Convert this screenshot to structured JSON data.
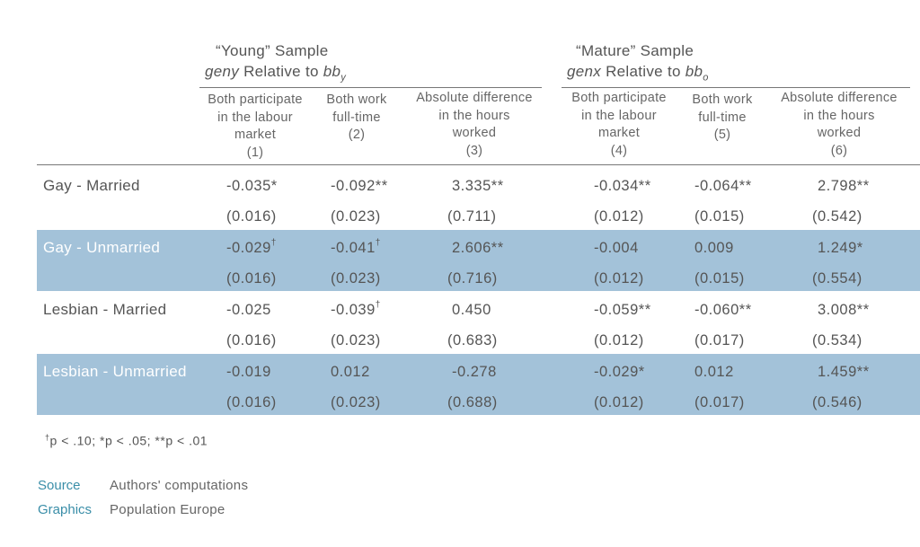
{
  "groups": [
    {
      "title": "“Young” Sample",
      "sub_var": "geny",
      "sub_mid": " Relative to ",
      "sub_base": "bb",
      "sub_index": "y"
    },
    {
      "title": "“Mature” Sample",
      "sub_var": "genx",
      "sub_mid": " Relative to ",
      "sub_base": "bb",
      "sub_index": "o"
    }
  ],
  "columns": [
    {
      "lines": [
        "Both participate",
        "in the labour",
        "market",
        "(1)"
      ]
    },
    {
      "lines": [
        "Both work",
        "full-time",
        "(2)"
      ]
    },
    {
      "lines": [
        "Absolute difference",
        "in the hours",
        "worked",
        "(3)"
      ]
    },
    {
      "lines": [
        "Both participate",
        "in the labour",
        "market",
        "(4)"
      ]
    },
    {
      "lines": [
        "Both work",
        "full-time",
        "(5)"
      ]
    },
    {
      "lines": [
        "Absolute difference",
        "in the hours",
        "worked",
        "(6)"
      ]
    }
  ],
  "rows": [
    {
      "label": "Gay - Married",
      "highlight": false,
      "coef": [
        [
          "-0.035*",
          ""
        ],
        [
          "-0.092**",
          ""
        ],
        [
          "3.335**",
          ""
        ],
        [
          "-0.034**",
          ""
        ],
        [
          "-0.064**",
          ""
        ],
        [
          "2.798**",
          ""
        ]
      ],
      "se": [
        "(0.016)",
        "(0.023)",
        "(0.711)",
        "(0.012)",
        "(0.015)",
        "(0.542)"
      ]
    },
    {
      "label": "Gay - Unmarried",
      "highlight": true,
      "coef": [
        [
          "-0.029",
          "†"
        ],
        [
          "-0.041",
          "†"
        ],
        [
          "2.606**",
          ""
        ],
        [
          "-0.004",
          ""
        ],
        [
          "0.009",
          ""
        ],
        [
          "1.249*",
          ""
        ]
      ],
      "se": [
        "(0.016)",
        "(0.023)",
        "(0.716)",
        "(0.012)",
        "(0.015)",
        "(0.554)"
      ]
    },
    {
      "label": "Lesbian - Married",
      "highlight": false,
      "coef": [
        [
          "-0.025",
          ""
        ],
        [
          "-0.039",
          "†"
        ],
        [
          "0.450",
          ""
        ],
        [
          "-0.059**",
          ""
        ],
        [
          "-0.060**",
          ""
        ],
        [
          "3.008**",
          ""
        ]
      ],
      "se": [
        "(0.016)",
        "(0.023)",
        "(0.683)",
        "(0.012)",
        "(0.017)",
        "(0.534)"
      ]
    },
    {
      "label": "Lesbian - Unmarried",
      "highlight": true,
      "coef": [
        [
          "-0.019",
          ""
        ],
        [
          "0.012",
          ""
        ],
        [
          "-0.278",
          ""
        ],
        [
          "-0.029*",
          ""
        ],
        [
          "0.012",
          ""
        ],
        [
          "1.459**",
          ""
        ]
      ],
      "se": [
        "(0.016)",
        "(0.023)",
        "(0.688)",
        "(0.012)",
        "(0.017)",
        "(0.546)"
      ]
    }
  ],
  "footnote": {
    "dagger": "†",
    "text": "p < .10; *p < .05; **p < .01"
  },
  "source": {
    "label": "Source",
    "value": "Authors' computations"
  },
  "graphics": {
    "label": "Graphics",
    "value": "Population Europe"
  },
  "colors": {
    "band": "#a3c2d9",
    "accent": "#3a8ea8",
    "text": "#555555"
  }
}
